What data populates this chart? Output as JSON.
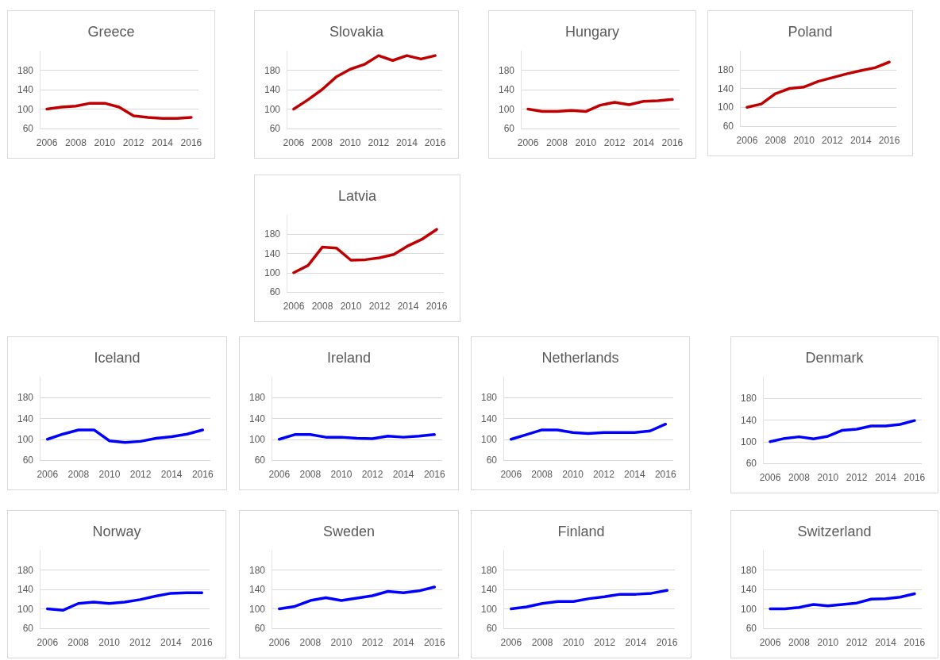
{
  "chart_data": [
    {
      "type": "line",
      "title": "Greece",
      "categories": [
        "2006",
        null,
        "2008",
        null,
        "2010",
        null,
        "2012",
        null,
        "2014",
        null,
        "2016"
      ],
      "values": [
        100,
        104,
        106,
        112,
        112,
        104,
        86,
        83,
        81,
        81,
        83
      ],
      "color": "#c00000",
      "ylim": [
        60,
        220
      ],
      "yticks": [
        60,
        100,
        140,
        180
      ],
      "grid": "y"
    },
    {
      "type": "line",
      "title": "Slovakia",
      "categories": [
        "2006",
        null,
        "2008",
        null,
        "2010",
        null,
        "2012",
        null,
        "2014",
        null,
        "2016"
      ],
      "values": [
        100,
        119,
        140,
        166,
        182,
        192,
        210,
        200,
        210,
        203,
        210
      ],
      "color": "#c00000",
      "ylim": [
        60,
        220
      ],
      "yticks": [
        60,
        100,
        140,
        180
      ],
      "grid": "y"
    },
    {
      "type": "line",
      "title": "Hungary",
      "categories": [
        "2006",
        null,
        "2008",
        null,
        "2010",
        null,
        "2012",
        null,
        "2014",
        null,
        "2016"
      ],
      "values": [
        100,
        95,
        95,
        97,
        95,
        108,
        114,
        109,
        116,
        117,
        120
      ],
      "color": "#c00000",
      "ylim": [
        60,
        220
      ],
      "yticks": [
        60,
        100,
        140,
        180
      ],
      "grid": "y"
    },
    {
      "type": "line",
      "title": "Poland",
      "categories": [
        "2006",
        null,
        "2008",
        null,
        "2010",
        null,
        "2012",
        null,
        "2014",
        null,
        "2016"
      ],
      "values": [
        100,
        107,
        129,
        140,
        143,
        155,
        163,
        171,
        178,
        184,
        196
      ],
      "color": "#c00000",
      "ylim": [
        60,
        220
      ],
      "yticks": [
        60,
        100,
        140,
        180
      ],
      "grid": "y"
    },
    {
      "type": "line",
      "title": "Latvia",
      "categories": [
        "2006",
        null,
        "2008",
        null,
        "2010",
        null,
        "2012",
        null,
        "2014",
        null,
        "2016"
      ],
      "values": [
        100,
        115,
        153,
        151,
        126,
        127,
        131,
        138,
        156,
        170,
        190
      ],
      "color": "#c00000",
      "ylim": [
        60,
        220
      ],
      "yticks": [
        60,
        100,
        140,
        180
      ],
      "grid": "y"
    },
    {
      "type": "line",
      "title": "Iceland",
      "categories": [
        "2006",
        null,
        "2008",
        null,
        "2010",
        null,
        "2012",
        null,
        "2014",
        null,
        "2016"
      ],
      "values": [
        100,
        110,
        118,
        118,
        97,
        94,
        96,
        102,
        105,
        110,
        118
      ],
      "color": "#0000ff",
      "ylim": [
        60,
        220
      ],
      "yticks": [
        60,
        100,
        140,
        180
      ],
      "grid": "y"
    },
    {
      "type": "line",
      "title": "Ireland",
      "categories": [
        "2006",
        null,
        "2008",
        null,
        "2010",
        null,
        "2012",
        null,
        "2014",
        null,
        "2016"
      ],
      "values": [
        100,
        109,
        109,
        104,
        104,
        102,
        101,
        106,
        104,
        106,
        109
      ],
      "color": "#0000ff",
      "ylim": [
        60,
        220
      ],
      "yticks": [
        60,
        100,
        140,
        180
      ],
      "grid": "y"
    },
    {
      "type": "line",
      "title": "Netherlands",
      "categories": [
        "2006",
        null,
        "2008",
        null,
        "2010",
        null,
        "2012",
        null,
        "2014",
        null,
        "2016"
      ],
      "values": [
        100,
        109,
        118,
        118,
        113,
        111,
        113,
        113,
        113,
        116,
        129
      ],
      "color": "#0000ff",
      "ylim": [
        60,
        220
      ],
      "yticks": [
        60,
        100,
        140,
        180
      ],
      "grid": "y"
    },
    {
      "type": "line",
      "title": "Denmark",
      "categories": [
        "2006",
        null,
        "2008",
        null,
        "2010",
        null,
        "2012",
        null,
        "2014",
        null,
        "2016"
      ],
      "values": [
        100,
        106,
        109,
        105,
        110,
        121,
        123,
        129,
        129,
        132,
        139
      ],
      "color": "#0000ff",
      "ylim": [
        60,
        220
      ],
      "yticks": [
        60,
        100,
        140,
        180
      ],
      "grid": "y"
    },
    {
      "type": "line",
      "title": "Norway",
      "categories": [
        "2006",
        null,
        "2008",
        null,
        "2010",
        null,
        "2012",
        null,
        "2014",
        null,
        "2016"
      ],
      "values": [
        100,
        97,
        111,
        114,
        111,
        114,
        119,
        126,
        132,
        133,
        133
      ],
      "color": "#0000ff",
      "ylim": [
        60,
        220
      ],
      "yticks": [
        60,
        100,
        140,
        180
      ],
      "grid": "y"
    },
    {
      "type": "line",
      "title": "Sweden",
      "categories": [
        "2006",
        null,
        "2008",
        null,
        "2010",
        null,
        "2012",
        null,
        "2014",
        null,
        "2016"
      ],
      "values": [
        100,
        105,
        117,
        123,
        117,
        122,
        127,
        136,
        133,
        137,
        145
      ],
      "color": "#0000ff",
      "ylim": [
        60,
        220
      ],
      "yticks": [
        60,
        100,
        140,
        180
      ],
      "grid": "y"
    },
    {
      "type": "line",
      "title": "Finland",
      "categories": [
        "2006",
        null,
        "2008",
        null,
        "2010",
        null,
        "2012",
        null,
        "2014",
        null,
        "2016"
      ],
      "values": [
        100,
        104,
        111,
        115,
        115,
        121,
        125,
        130,
        130,
        132,
        138
      ],
      "color": "#0000ff",
      "ylim": [
        60,
        220
      ],
      "yticks": [
        60,
        100,
        140,
        180
      ],
      "grid": "y"
    },
    {
      "type": "line",
      "title": "Switzerland",
      "categories": [
        "2006",
        null,
        "2008",
        null,
        "2010",
        null,
        "2012",
        null,
        "2014",
        null,
        "2016"
      ],
      "values": [
        100,
        100,
        103,
        109,
        106,
        109,
        112,
        120,
        121,
        124,
        131
      ],
      "color": "#0000ff",
      "ylim": [
        60,
        220
      ],
      "yticks": [
        60,
        100,
        140,
        180
      ],
      "grid": "y"
    }
  ]
}
